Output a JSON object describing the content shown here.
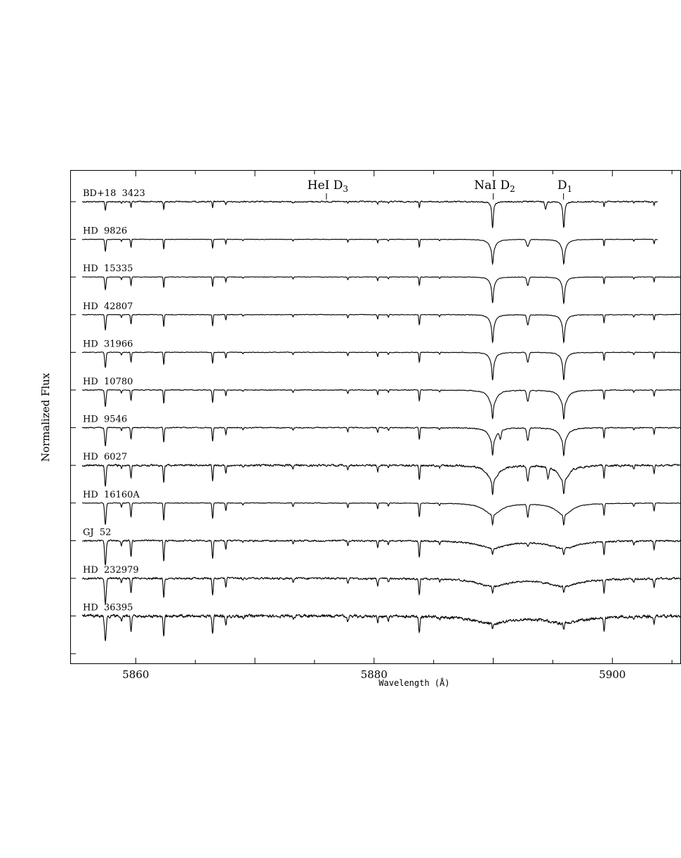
{
  "chart_data": {
    "type": "line",
    "title": "",
    "xlabel": "Wavelength (Å)",
    "ylabel": "Normalized Flux",
    "xlim": [
      5855.5,
      5905.7
    ],
    "x_ticks": [
      5860,
      5880,
      5900
    ],
    "grid": false,
    "legend": "none",
    "line_annotations": [
      {
        "name": "HeI D3",
        "ion": "HeI",
        "line": "D",
        "sub": "3",
        "wavelength": 5876.0
      },
      {
        "name": "NaI D2",
        "ion": "NaI",
        "line": "D",
        "sub": "2",
        "wavelength": 5890.0
      },
      {
        "name": "NaI D1",
        "ion": "",
        "line": "D",
        "sub": "1",
        "wavelength": 5895.9
      }
    ],
    "series": [
      {
        "name": "BD+18  3423",
        "x_end": 5903.8,
        "na_width": 0.12,
        "na_depth": 0.85,
        "line_scale": 0.6,
        "noise": 0.08,
        "extra_lines": [
          {
            "x": 5894.4,
            "depth": 0.25,
            "width": 0.1
          }
        ]
      },
      {
        "name": "HD  9826",
        "x_end": 5903.8,
        "na_width": 0.25,
        "na_depth": 0.8,
        "line_scale": 0.8,
        "noise": 0.03,
        "extra_lines": [
          {
            "x": 5892.9,
            "depth": 0.25,
            "width": 0.15
          }
        ]
      },
      {
        "name": "HD  15335",
        "x_end": 5905.7,
        "na_width": 0.2,
        "na_depth": 0.85,
        "line_scale": 0.85,
        "noise": 0.03,
        "extra_lines": [
          {
            "x": 5892.9,
            "depth": 0.3,
            "width": 0.12
          }
        ]
      },
      {
        "name": "HD  42807",
        "x_end": 5905.7,
        "na_width": 0.22,
        "na_depth": 0.9,
        "line_scale": 1.0,
        "noise": 0.04,
        "extra_lines": [
          {
            "x": 5892.9,
            "depth": 0.35,
            "width": 0.12
          }
        ]
      },
      {
        "name": "HD  31966",
        "x_end": 5905.7,
        "na_width": 0.22,
        "na_depth": 0.9,
        "line_scale": 1.0,
        "noise": 0.04,
        "extra_lines": [
          {
            "x": 5892.9,
            "depth": 0.35,
            "width": 0.12
          }
        ]
      },
      {
        "name": "HD  10780",
        "x_end": 5905.7,
        "na_width": 0.35,
        "na_depth": 0.95,
        "line_scale": 1.1,
        "noise": 0.05,
        "extra_lines": [
          {
            "x": 5892.9,
            "depth": 0.4,
            "width": 0.12
          }
        ]
      },
      {
        "name": "HD  9546",
        "x_end": 5905.7,
        "na_width": 0.35,
        "na_depth": 0.9,
        "line_scale": 1.2,
        "noise": 0.06,
        "extra_lines": [
          {
            "x": 5892.9,
            "depth": 0.45,
            "width": 0.12
          },
          {
            "x": 5890.6,
            "depth": 0.3,
            "width": 0.1
          }
        ]
      },
      {
        "name": "HD  6027",
        "x_end": 5905.7,
        "na_width": 0.5,
        "na_depth": 0.95,
        "line_scale": 1.4,
        "noise": 0.12,
        "extra_lines": [
          {
            "x": 5892.9,
            "depth": 0.55,
            "width": 0.12
          },
          {
            "x": 5894.6,
            "depth": 0.4,
            "width": 0.1
          }
        ]
      },
      {
        "name": "HD  16160A",
        "x_end": 5905.7,
        "na_width": 0.8,
        "na_depth": 0.7,
        "line_scale": 1.4,
        "noise": 0.04,
        "extra_lines": [
          {
            "x": 5892.9,
            "depth": 0.45,
            "width": 0.1
          }
        ]
      },
      {
        "name": "GJ  52",
        "x_end": 5905.7,
        "na_width": 1.3,
        "na_depth": 0.45,
        "line_scale": 1.6,
        "noise": 0.1,
        "extra_lines": [
          {
            "x": 5892.9,
            "depth": 0.12,
            "width": 0.1
          }
        ]
      },
      {
        "name": "HD  232979",
        "x_end": 5905.7,
        "na_width": 1.5,
        "na_depth": 0.45,
        "line_scale": 1.6,
        "noise": 0.12,
        "extra_lines": []
      },
      {
        "name": "HD  36395",
        "x_end": 5905.7,
        "na_width": 1.7,
        "na_depth": 0.42,
        "line_scale": 1.6,
        "noise": 0.18,
        "extra_lines": []
      }
    ]
  }
}
